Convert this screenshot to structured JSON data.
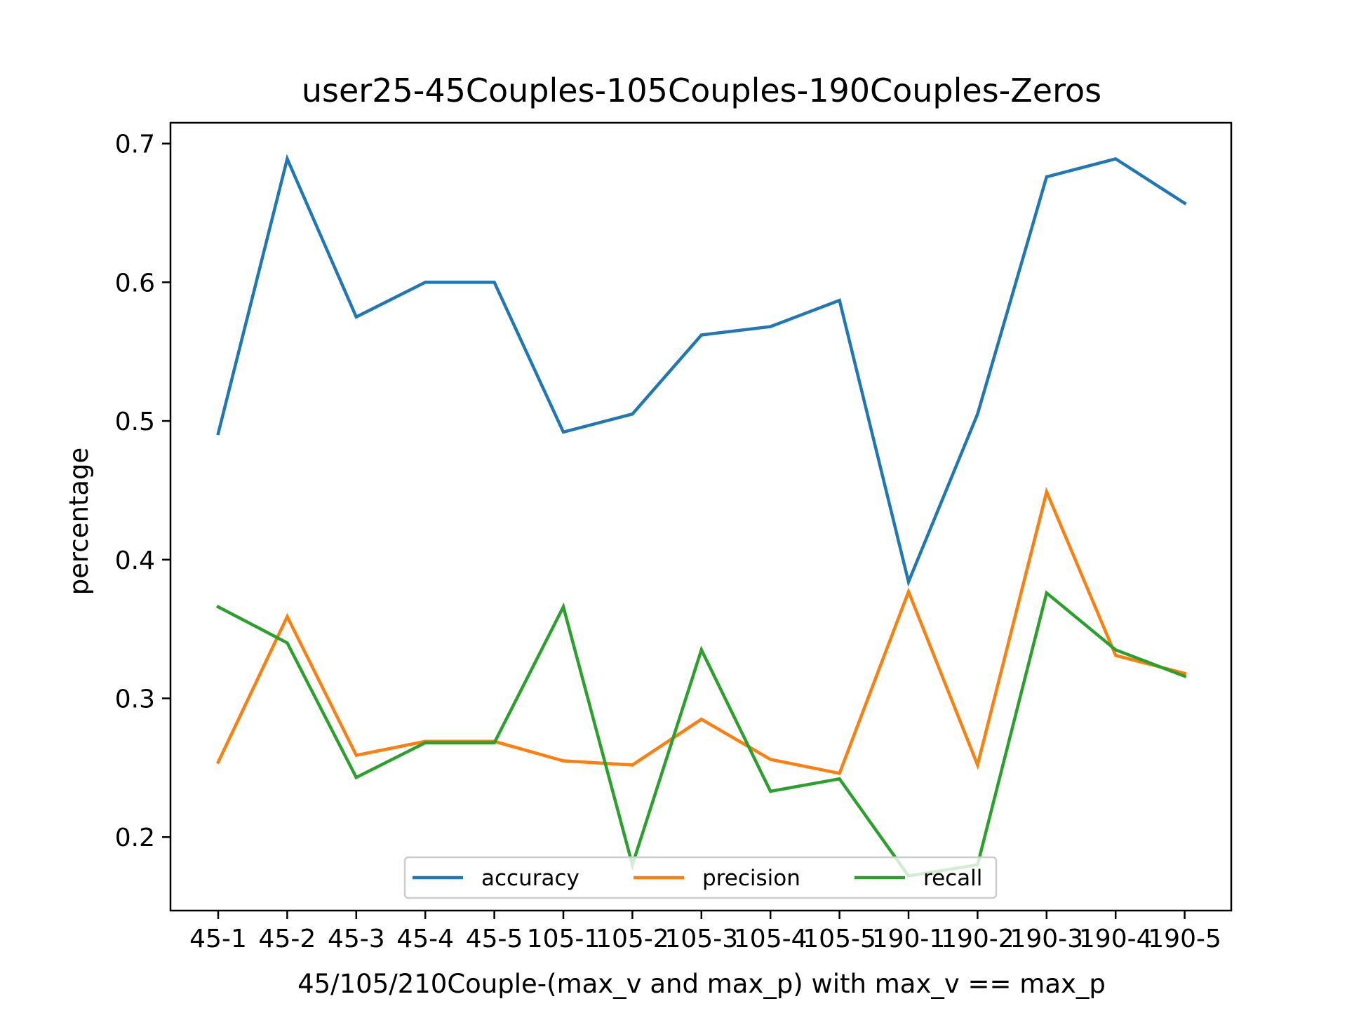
{
  "chart_data": {
    "type": "line",
    "title": "user25-45Couples-105Couples-190Couples-Zeros",
    "xlabel": "45/105/210Couple-(max_v and max_p) with max_v == max_p",
    "ylabel": "percentage",
    "categories": [
      "45-1",
      "45-2",
      "45-3",
      "45-4",
      "45-5",
      "105-1",
      "105-2",
      "105-3",
      "105-4",
      "105-5",
      "190-1",
      "190-2",
      "190-3",
      "190-4",
      "190-5"
    ],
    "ylim": [
      0.147,
      0.715
    ],
    "yticks": [
      0.2,
      0.3,
      0.4,
      0.5,
      0.6,
      0.7
    ],
    "ytick_labels": [
      "0.2",
      "0.3",
      "0.4",
      "0.5",
      "0.6",
      "0.7"
    ],
    "grid": false,
    "legend": {
      "position": "lower center",
      "columns": 3
    },
    "series": [
      {
        "name": "accuracy",
        "color": "#1f77b4",
        "values": [
          0.491,
          0.689,
          0.575,
          0.6,
          0.6,
          0.492,
          0.505,
          0.562,
          0.568,
          0.587,
          0.384,
          0.505,
          0.676,
          0.689,
          0.657
        ]
      },
      {
        "name": "precision",
        "color": "#ff7f0e",
        "values": [
          0.254,
          0.359,
          0.259,
          0.269,
          0.269,
          0.255,
          0.252,
          0.285,
          0.256,
          0.246,
          0.377,
          0.252,
          0.449,
          0.331,
          0.318
        ]
      },
      {
        "name": "recall",
        "color": "#2ca02c",
        "values": [
          0.366,
          0.34,
          0.243,
          0.268,
          0.268,
          0.366,
          0.18,
          0.335,
          0.233,
          0.242,
          0.172,
          0.18,
          0.376,
          0.335,
          0.316
        ]
      }
    ]
  }
}
